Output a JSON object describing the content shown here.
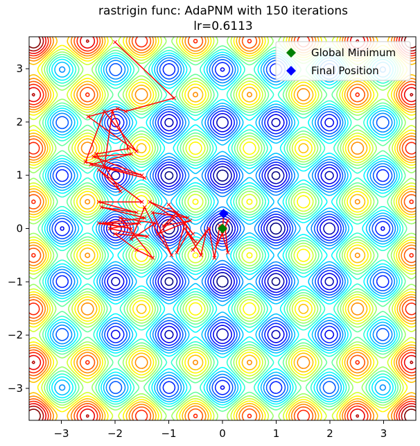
{
  "chart_data": {
    "type": "contour",
    "title": "rastrigin func: AdaPNM with 150 iterations",
    "subtitle": "lr=0.6113",
    "xlabel": "",
    "ylabel": "",
    "xlim": [
      -3.6,
      3.6
    ],
    "ylim": [
      -3.6,
      3.6
    ],
    "xticks": [
      -3,
      -2,
      -1,
      0,
      1,
      2,
      3
    ],
    "yticks": [
      -3,
      -2,
      -1,
      0,
      1,
      2,
      3
    ],
    "xtick_labels": [
      "−3",
      "−2",
      "−1",
      "0",
      "1",
      "2",
      "3"
    ],
    "ytick_labels": [
      "−3",
      "−2",
      "−1",
      "0",
      "1",
      "2",
      "3"
    ],
    "contour": {
      "function": "rastrigin",
      "colormap": "jet",
      "grid": false
    },
    "legend": {
      "placement": "top-right",
      "entries": [
        {
          "label": "Global Minimum",
          "color": "#008000",
          "marker": "diamond"
        },
        {
          "label": "Final Position",
          "color": "#0000ff",
          "marker": "diamond"
        }
      ]
    },
    "global_minimum": {
      "x": 0,
      "y": 0,
      "color": "#008000"
    },
    "final_position": {
      "x": 0.02,
      "y": 0.28,
      "color": "#0000ff"
    },
    "path": {
      "color": "#ff0000",
      "points": [
        [
          -2.0,
          3.5
        ],
        [
          -0.9,
          2.45
        ],
        [
          -1.8,
          2.2
        ],
        [
          -1.95,
          2.25
        ],
        [
          -2.5,
          2.1
        ],
        [
          -1.6,
          1.45
        ],
        [
          -2.2,
          2.2
        ],
        [
          -2.55,
          1.25
        ],
        [
          -1.5,
          1.0
        ],
        [
          -2.4,
          1.35
        ],
        [
          -1.7,
          1.4
        ],
        [
          -2.45,
          1.2
        ],
        [
          -1.45,
          0.95
        ],
        [
          -2.2,
          1.15
        ],
        [
          -2.05,
          2.2
        ],
        [
          -1.75,
          1.5
        ],
        [
          -2.35,
          1.4
        ],
        [
          -1.9,
          0.7
        ],
        [
          -2.3,
          1.1
        ],
        [
          -1.5,
          0.5
        ],
        [
          -2.3,
          0.5
        ],
        [
          -1.6,
          0.3
        ],
        [
          -2.25,
          0.4
        ],
        [
          -1.45,
          0.2
        ],
        [
          -2.2,
          0.1
        ],
        [
          -1.7,
          0.0
        ],
        [
          -2.3,
          0.1
        ],
        [
          -1.55,
          0.1
        ],
        [
          -2.1,
          0.0
        ],
        [
          -1.4,
          -0.15
        ],
        [
          -2.0,
          -0.1
        ],
        [
          -1.6,
          -0.4
        ],
        [
          -1.3,
          -0.55
        ],
        [
          -1.9,
          0.2
        ],
        [
          -1.25,
          0.1
        ],
        [
          -1.7,
          -0.2
        ],
        [
          -1.45,
          0.4
        ],
        [
          -1.2,
          -0.1
        ],
        [
          -0.9,
          0.2
        ],
        [
          -1.35,
          0.5
        ],
        [
          -0.65,
          0.2
        ],
        [
          -1.3,
          0.3
        ],
        [
          -0.95,
          -0.5
        ],
        [
          -1.2,
          -0.1
        ],
        [
          -0.6,
          0.15
        ],
        [
          -1.1,
          0.05
        ],
        [
          -0.85,
          0.3
        ],
        [
          -0.55,
          -0.1
        ],
        [
          -1.0,
          0.45
        ],
        [
          -0.7,
          0.1
        ],
        [
          -0.85,
          -0.45
        ],
        [
          -0.65,
          -0.1
        ],
        [
          -0.5,
          -0.25
        ],
        [
          -0.7,
          0.0
        ],
        [
          -0.4,
          -0.5
        ],
        [
          -0.3,
          -0.05
        ],
        [
          -0.55,
          -0.4
        ],
        [
          -0.25,
          0.0
        ],
        [
          -0.15,
          -0.55
        ],
        [
          -0.05,
          0.05
        ],
        [
          0.1,
          -0.45
        ],
        [
          0.05,
          0.0
        ],
        [
          -0.1,
          -0.3
        ],
        [
          0.1,
          0.15
        ],
        [
          0.0,
          -0.1
        ],
        [
          0.02,
          0.28
        ]
      ]
    }
  }
}
